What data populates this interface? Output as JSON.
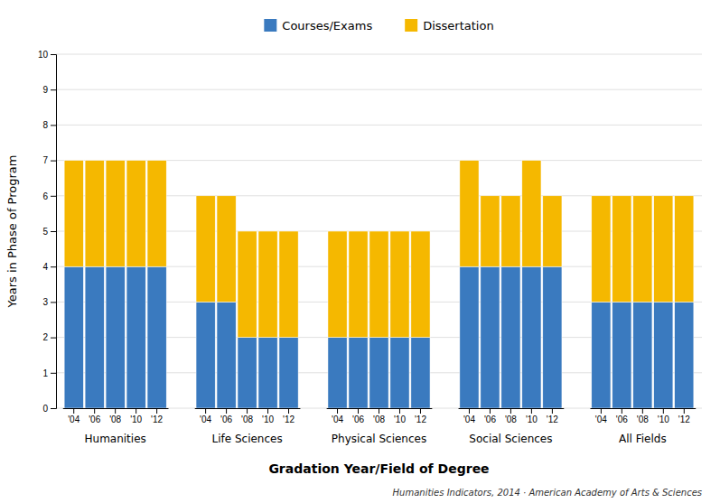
{
  "chart_data": {
    "type": "bar",
    "stacked": true,
    "categories": [
      "'04",
      "'06",
      "'08",
      "'10",
      "'12",
      "'04",
      "'06",
      "'08",
      "'10",
      "'12",
      "'04",
      "'06",
      "'08",
      "'10",
      "'12",
      "'04",
      "'06",
      "'08",
      "'10",
      "'12",
      "'04",
      "'06",
      "'08",
      "'10",
      "'12"
    ],
    "groups": [
      "Humanities",
      "Life Sciences",
      "Physical Sciences",
      "Social Sciences",
      "All Fields"
    ],
    "series": [
      {
        "name": "Courses/Exams",
        "color": "#3a7abf",
        "values": [
          4,
          4,
          4,
          4,
          4,
          3,
          3,
          2,
          2,
          2,
          2,
          2,
          2,
          2,
          2,
          4,
          4,
          4,
          4,
          4,
          3,
          3,
          3,
          3,
          3
        ]
      },
      {
        "name": "Dissertation",
        "color": "#f5b800",
        "values": [
          3,
          3,
          3,
          3,
          3,
          3,
          3,
          3,
          3,
          3,
          3,
          3,
          3,
          3,
          3,
          3,
          2,
          2,
          3,
          2,
          3,
          3,
          3,
          3,
          3
        ]
      }
    ],
    "y_label": "Years in Phase of Program",
    "x_label": "Gradation Year/Field of Degree",
    "ylim": [
      0,
      10
    ],
    "yticks": [
      0,
      1,
      2,
      3,
      4,
      5,
      6,
      7,
      8,
      9,
      10
    ],
    "grid": true,
    "legend": "top",
    "annotations": [
      "Humanities Indicators, 2014 · American Academy of Arts & Sciences"
    ]
  }
}
